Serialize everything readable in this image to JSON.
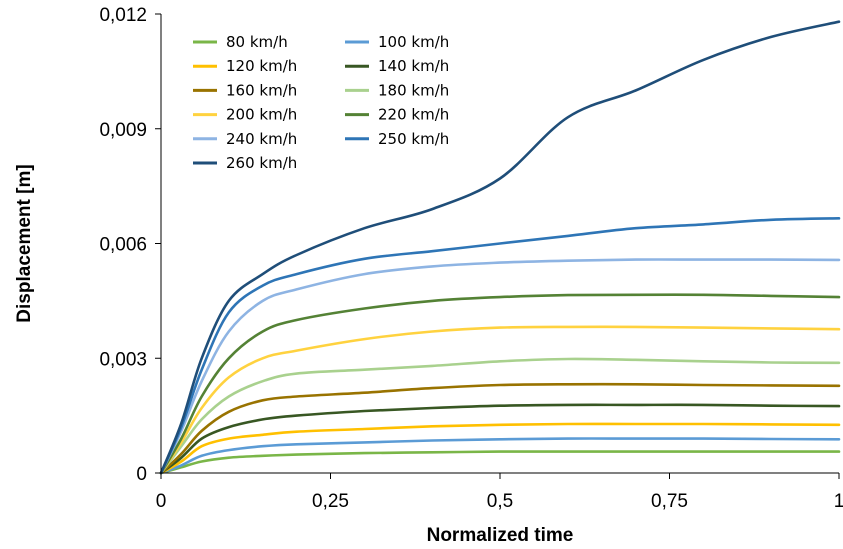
{
  "chart_data": {
    "type": "line",
    "xlabel": "Normalized time",
    "ylabel": "Displacement [m]",
    "xlim": [
      0,
      1
    ],
    "ylim": [
      0,
      0.012
    ],
    "x_ticks": [
      "0",
      "0,25",
      "0,5",
      "0,75",
      "1"
    ],
    "y_ticks": [
      "0",
      "0,003",
      "0,006",
      "0,009",
      "0,012"
    ],
    "grid": false,
    "legend_position": "top-left",
    "x": [
      0,
      0.03,
      0.06,
      0.1,
      0.15,
      0.2,
      0.3,
      0.4,
      0.5,
      0.6,
      0.7,
      0.8,
      0.9,
      1.0
    ],
    "series": [
      {
        "name": "80 km/h",
        "color": "#7AB648",
        "values": [
          0,
          0.00015,
          0.0003,
          0.0004,
          0.00045,
          0.00048,
          0.00052,
          0.00054,
          0.00056,
          0.00056,
          0.00056,
          0.00056,
          0.00056,
          0.00056
        ]
      },
      {
        "name": "100 km/h",
        "color": "#5B9BD5",
        "values": [
          0,
          0.0002,
          0.00045,
          0.0006,
          0.0007,
          0.00075,
          0.0008,
          0.00085,
          0.00088,
          0.0009,
          0.0009,
          0.0009,
          0.00089,
          0.00088
        ]
      },
      {
        "name": "120 km/h",
        "color": "#FFC000",
        "values": [
          0,
          0.0003,
          0.0007,
          0.0009,
          0.001,
          0.00108,
          0.00115,
          0.00122,
          0.00126,
          0.00128,
          0.00128,
          0.00128,
          0.00127,
          0.00126
        ]
      },
      {
        "name": "140 km/h",
        "color": "#385723",
        "values": [
          0,
          0.0004,
          0.0009,
          0.0012,
          0.0014,
          0.0015,
          0.00162,
          0.0017,
          0.00176,
          0.00178,
          0.00178,
          0.00178,
          0.00176,
          0.00175
        ]
      },
      {
        "name": "160 km/h",
        "color": "#997300",
        "values": [
          0,
          0.0005,
          0.0011,
          0.0016,
          0.0019,
          0.002,
          0.0021,
          0.00222,
          0.0023,
          0.00232,
          0.00232,
          0.0023,
          0.00229,
          0.00228
        ]
      },
      {
        "name": "180 km/h",
        "color": "#A9D18E",
        "values": [
          0,
          0.0007,
          0.0014,
          0.002,
          0.0024,
          0.0026,
          0.0027,
          0.0028,
          0.00292,
          0.00298,
          0.00296,
          0.00292,
          0.00289,
          0.00288
        ]
      },
      {
        "name": "200 km/h",
        "color": "#FFD23F",
        "values": [
          0,
          0.0008,
          0.0017,
          0.0025,
          0.003,
          0.0032,
          0.0035,
          0.0037,
          0.0038,
          0.00382,
          0.00382,
          0.0038,
          0.00378,
          0.00376
        ]
      },
      {
        "name": "220 km/h",
        "color": "#548235",
        "values": [
          0,
          0.0009,
          0.002,
          0.003,
          0.0037,
          0.004,
          0.0043,
          0.0045,
          0.0046,
          0.00465,
          0.00466,
          0.00466,
          0.00463,
          0.0046
        ]
      },
      {
        "name": "240 km/h",
        "color": "#8EB4E3",
        "values": [
          0,
          0.0011,
          0.0024,
          0.0037,
          0.0045,
          0.0048,
          0.0052,
          0.0054,
          0.0055,
          0.00555,
          0.00558,
          0.00558,
          0.00558,
          0.00557
        ]
      },
      {
        "name": "250 km/h",
        "color": "#2E75B6",
        "values": [
          0,
          0.0012,
          0.0027,
          0.0042,
          0.0049,
          0.0052,
          0.0056,
          0.0058,
          0.006,
          0.0062,
          0.0064,
          0.0065,
          0.00662,
          0.00666
        ]
      },
      {
        "name": "260 km/h",
        "color": "#1F4E79",
        "values": [
          0,
          0.0013,
          0.003,
          0.0045,
          0.0052,
          0.0057,
          0.0064,
          0.0069,
          0.0077,
          0.0093,
          0.01,
          0.0108,
          0.0114,
          0.0118
        ]
      }
    ]
  }
}
